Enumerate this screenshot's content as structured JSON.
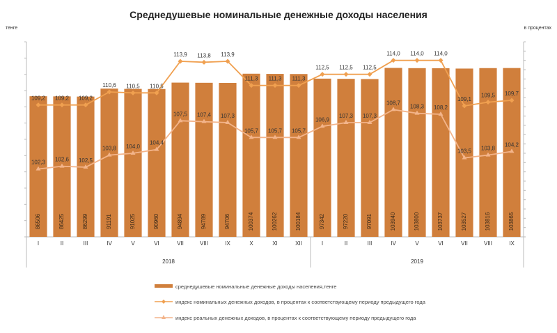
{
  "chart_data": {
    "type": "bar+line",
    "title": "Среднедушевые номинальные  денежные доходы населения",
    "left_unit": "тенге",
    "right_unit": "в процентах",
    "categories": [
      "I",
      "II",
      "III",
      "IV",
      "V",
      "VI",
      "VII",
      "VIII",
      "IX",
      "X",
      "XI",
      "XII",
      "I",
      "II",
      "III",
      "IV",
      "V",
      "VI",
      "VII",
      "VIII",
      "IX"
    ],
    "years": [
      {
        "label": "2018",
        "span": 12
      },
      {
        "label": "2019",
        "span": 9
      }
    ],
    "ylim_left": [
      0,
      120000
    ],
    "ylim_right": [
      95,
      116
    ],
    "series": [
      {
        "name": "среднедушевые номинальные денежные доходы населения,тенге",
        "type": "bar",
        "color": "#D07F3C",
        "values": [
          86506,
          86425,
          86299,
          91191,
          91025,
          90960,
          94894,
          94789,
          94706,
          100374,
          100262,
          100184,
          97342,
          97220,
          97091,
          103940,
          103800,
          103737,
          103527,
          103816,
          103865
        ]
      },
      {
        "name": "индекс номинальных денежных доходов, в процентах к соответствующему периоду предыдущего года",
        "type": "line",
        "color": "#F0A050",
        "values": [
          109.2,
          109.2,
          109.2,
          110.6,
          110.5,
          110.5,
          113.9,
          113.8,
          113.9,
          111.3,
          111.3,
          111.3,
          112.5,
          112.5,
          112.5,
          114.0,
          114.0,
          114.0,
          109.1,
          109.5,
          109.7
        ]
      },
      {
        "name": "индекс реальных денежных доходов, в процентах к соответствующему периоду предыдущего года",
        "type": "line",
        "color": "#F3B48A",
        "values": [
          102.3,
          102.6,
          102.5,
          103.8,
          104.0,
          104.4,
          107.5,
          107.4,
          107.3,
          105.7,
          105.7,
          105.7,
          106.9,
          107.3,
          107.3,
          108.7,
          108.3,
          108.2,
          103.5,
          103.8,
          104.2
        ]
      }
    ]
  }
}
